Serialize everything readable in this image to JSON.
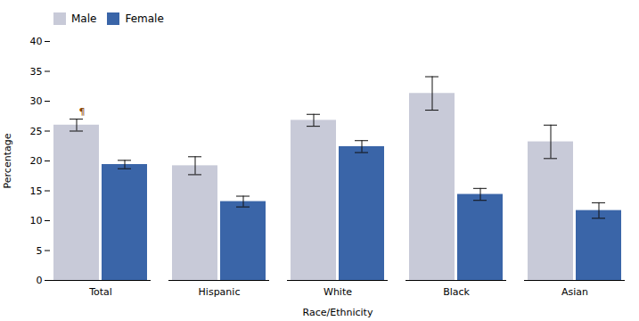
{
  "chart_data": {
    "type": "bar",
    "categories": [
      "Total",
      "Hispanic",
      "White",
      "Black",
      "Asian"
    ],
    "series": [
      {
        "name": "Male",
        "color": "#c8cad8",
        "values": [
          26.0,
          19.2,
          26.8,
          31.3,
          23.2
        ],
        "errors": [
          1.0,
          1.5,
          1.0,
          2.8,
          2.8
        ]
      },
      {
        "name": "Female",
        "color": "#3a65a8",
        "values": [
          19.4,
          13.2,
          22.4,
          14.4,
          11.7
        ],
        "errors": [
          0.7,
          0.9,
          1.0,
          1.0,
          1.3
        ]
      }
    ],
    "xlabel": "Race/Ethnicity",
    "ylabel": "Percentage",
    "ylim": [
      0,
      40
    ],
    "yticks": [
      0,
      5,
      10,
      15,
      20,
      25,
      30,
      35,
      40
    ],
    "legend": "upper left",
    "grid": false,
    "annotations": [
      {
        "text": "¶",
        "category": "Total",
        "series": "Male"
      }
    ]
  }
}
